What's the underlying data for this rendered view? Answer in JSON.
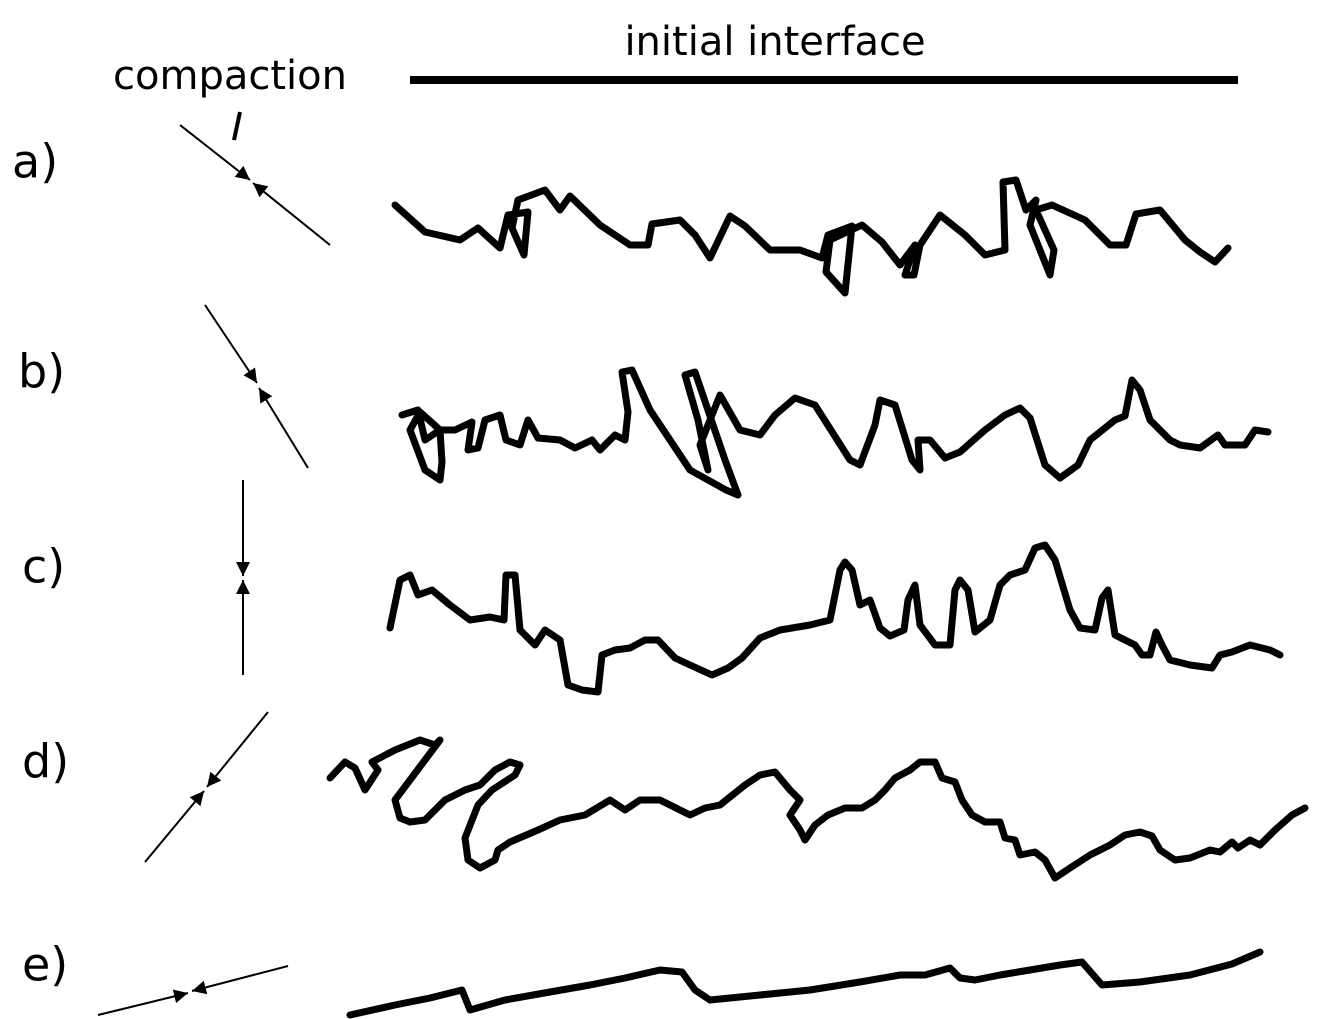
{
  "title": "initial interface",
  "compaction_label": "compaction",
  "panels": [
    {
      "label": "a)"
    },
    {
      "label": "b)"
    },
    {
      "label": "c)"
    },
    {
      "label": "d)"
    },
    {
      "label": "e)"
    }
  ]
}
